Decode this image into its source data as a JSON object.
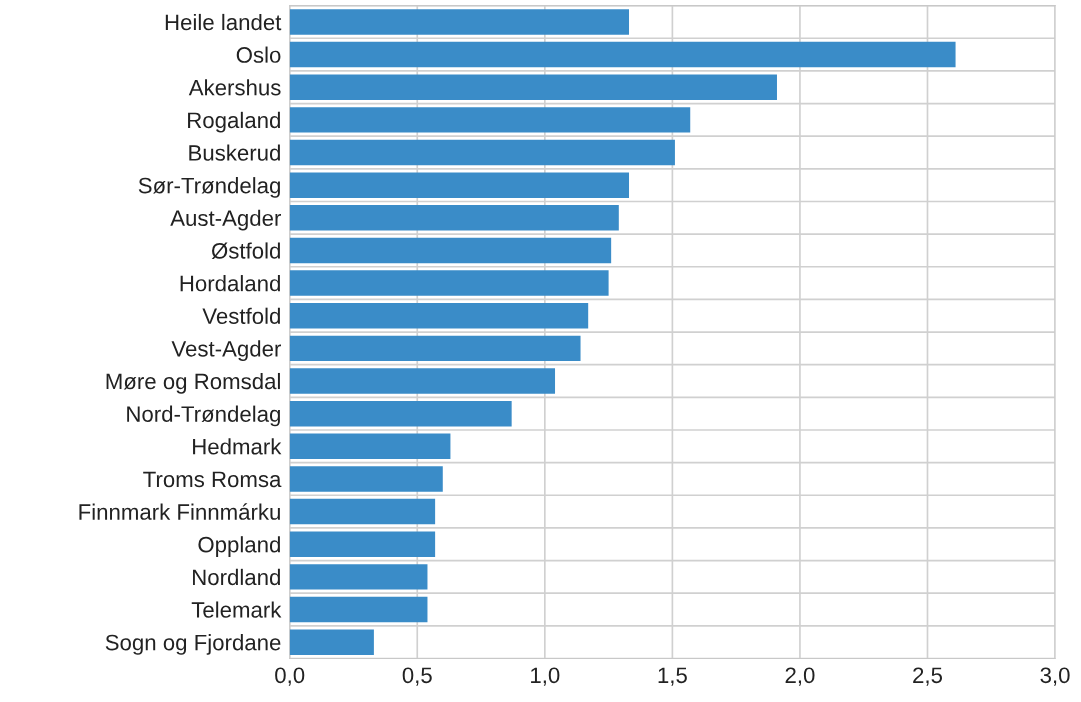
{
  "chart_data": {
    "type": "bar",
    "orientation": "horizontal",
    "categories": [
      "Heile landet",
      "Oslo",
      "Akershus",
      "Rogaland",
      "Buskerud",
      "Sør-Trøndelag",
      "Aust-Agder",
      "Østfold",
      "Hordaland",
      "Vestfold",
      "Vest-Agder",
      "Møre og Romsdal",
      "Nord-Trøndelag",
      "Hedmark",
      "Troms Romsa",
      "Finnmark Finnmárku",
      "Oppland",
      "Nordland",
      "Telemark",
      "Sogn og Fjordane"
    ],
    "values": [
      1.33,
      2.61,
      1.91,
      1.57,
      1.51,
      1.33,
      1.29,
      1.26,
      1.25,
      1.17,
      1.14,
      1.04,
      0.87,
      0.63,
      0.6,
      0.57,
      0.57,
      0.54,
      0.54,
      0.33
    ],
    "color": "#3a8cc8",
    "xlim": [
      0,
      3
    ],
    "xticks": [
      {
        "value": 0,
        "label": "0,0"
      },
      {
        "value": 0.5,
        "label": "0,5"
      },
      {
        "value": 1,
        "label": "1,0"
      },
      {
        "value": 1.5,
        "label": "1,5"
      },
      {
        "value": 2,
        "label": "2,0"
      },
      {
        "value": 2.5,
        "label": "2,5"
      },
      {
        "value": 3,
        "label": "3,0"
      }
    ],
    "grid": true
  }
}
